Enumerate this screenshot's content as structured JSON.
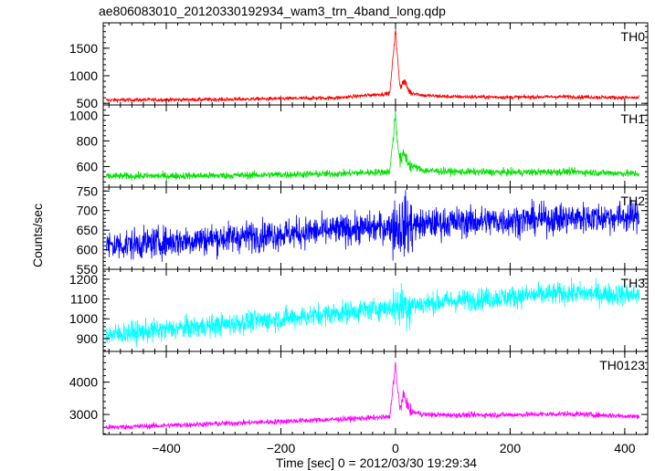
{
  "chart_data": {
    "type": "line",
    "title": "ae806083010_20120330192934_wam3_trn_4band_long.qdp",
    "xlabel": "Time [sec] 0 = 2012/03/30 19:29:34",
    "ylabel": "Counts/sec",
    "xlim": [
      -510,
      440
    ],
    "x_ticks": [
      -400,
      -200,
      0,
      200,
      400
    ],
    "x_tick_labels": [
      "−400",
      "−200",
      "0",
      "200",
      "400"
    ],
    "grid": false,
    "panels": [
      {
        "name": "TH0",
        "color": "#ff0000",
        "ylim": [
          470,
          1960
        ],
        "y_ticks": [
          500,
          1000,
          1500
        ],
        "y_tick_labels": [
          "500",
          "1000",
          "1500"
        ],
        "series": {
          "x": [
            -500,
            -300,
            -100,
            -10,
            0,
            2,
            8,
            15,
            25,
            50,
            100,
            200,
            300,
            420
          ],
          "y": [
            560,
            570,
            600,
            680,
            1850,
            1500,
            800,
            900,
            700,
            640,
            620,
            610,
            620,
            600
          ],
          "noise": 25
        }
      },
      {
        "name": "TH1",
        "color": "#00e000",
        "ylim": [
          440,
          1080
        ],
        "y_ticks": [
          600,
          800,
          1000
        ],
        "y_tick_labels": [
          "600",
          "800",
          "1000"
        ],
        "series": {
          "x": [
            -500,
            -300,
            -100,
            -10,
            0,
            2,
            8,
            15,
            25,
            50,
            100,
            200,
            300,
            420
          ],
          "y": [
            525,
            530,
            545,
            560,
            1010,
            860,
            640,
            700,
            610,
            570,
            560,
            555,
            560,
            545
          ],
          "noise": 20
        }
      },
      {
        "name": "TH2",
        "color": "#0000ff",
        "ylim": [
          550,
          760
        ],
        "y_ticks": [
          550,
          600,
          650,
          700,
          750
        ],
        "y_tick_labels": [
          "550",
          "600",
          "650",
          "700",
          "750"
        ],
        "series": {
          "x": [
            -500,
            -300,
            -100,
            0,
            100,
            200,
            300,
            420
          ],
          "y": [
            610,
            630,
            650,
            660,
            670,
            675,
            680,
            685
          ],
          "noise": 28
        }
      },
      {
        "name": "TH3",
        "color": "#00ffff",
        "ylim": [
          835,
          1250
        ],
        "y_ticks": [
          900,
          1000,
          1100,
          1200
        ],
        "y_tick_labels": [
          "900",
          "1000",
          "1100",
          "1200"
        ],
        "series": {
          "x": [
            -500,
            -300,
            -100,
            0,
            100,
            200,
            300,
            420
          ],
          "y": [
            920,
            970,
            1030,
            1060,
            1090,
            1110,
            1130,
            1120
          ],
          "noise": 40
        }
      },
      {
        "name": "TH0123",
        "color": "#ff00ff",
        "ylim": [
          2380,
          4950
        ],
        "y_ticks": [
          3000,
          4000
        ],
        "y_tick_labels": [
          "3000",
          "4000"
        ],
        "series": {
          "x": [
            -500,
            -300,
            -100,
            -10,
            0,
            2,
            8,
            15,
            25,
            50,
            100,
            200,
            300,
            420
          ],
          "y": [
            2600,
            2720,
            2850,
            2920,
            4600,
            4000,
            3200,
            3600,
            3100,
            3000,
            2980,
            2990,
            3020,
            2940
          ],
          "noise": 60
        }
      }
    ]
  }
}
